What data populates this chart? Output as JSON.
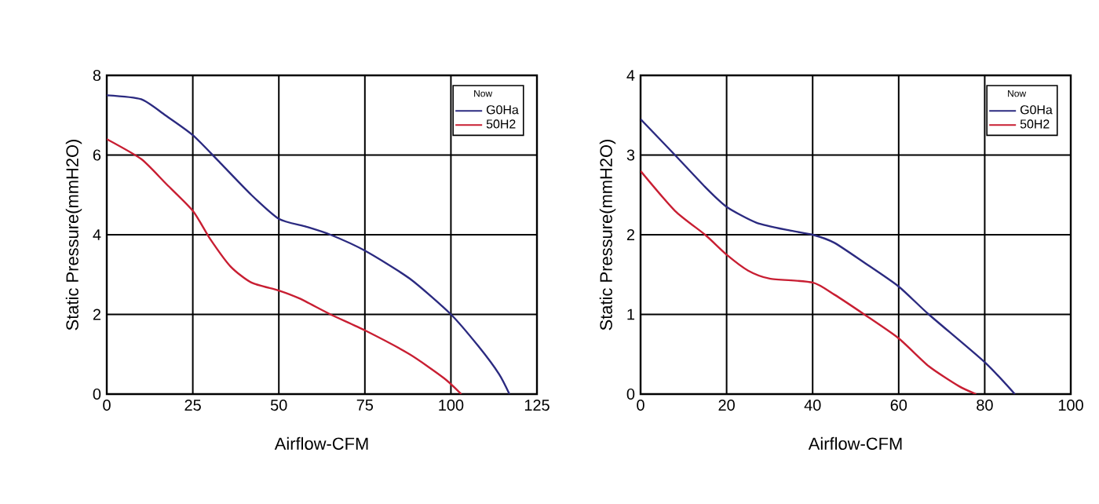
{
  "chart_data": [
    {
      "type": "line",
      "xlabel": "Airflow-CFM",
      "ylabel": "Static Pressure(mmH2O)",
      "legend_title": "Now",
      "xlim": [
        0,
        125
      ],
      "ylim": [
        0,
        8
      ],
      "xticks": [
        0,
        25,
        50,
        75,
        100,
        125
      ],
      "yticks": [
        0,
        2,
        4,
        6,
        8
      ],
      "grid": true,
      "legend": "top right",
      "marker": "none",
      "line_style": "solid",
      "series": [
        {
          "name": "G0Ha",
          "color": "#2b2a80",
          "x": [
            0,
            10,
            17,
            25,
            33,
            42,
            50,
            58,
            65,
            75,
            88,
            100,
            108,
            114,
            117
          ],
          "values": [
            7.5,
            7.4,
            7.0,
            6.5,
            5.8,
            5.0,
            4.4,
            4.2,
            4.0,
            3.6,
            2.9,
            2.0,
            1.2,
            0.5,
            0
          ]
        },
        {
          "name": "50H2",
          "color": "#c81e32",
          "x": [
            0,
            10,
            17,
            25,
            30,
            36,
            42,
            50,
            56,
            65,
            75,
            88,
            98,
            103
          ],
          "values": [
            6.4,
            5.9,
            5.3,
            4.6,
            3.9,
            3.2,
            2.8,
            2.6,
            2.4,
            2.0,
            1.6,
            1.0,
            0.4,
            0
          ]
        }
      ]
    },
    {
      "type": "line",
      "xlabel": "Airflow-CFM",
      "ylabel": "Static Pressure(mmH2O)",
      "legend_title": "Now",
      "xlim": [
        0,
        100
      ],
      "ylim": [
        0,
        4
      ],
      "xticks": [
        0,
        20,
        40,
        60,
        80,
        100
      ],
      "yticks": [
        0,
        1,
        2,
        3,
        4
      ],
      "grid": true,
      "legend": "top right",
      "marker": "none",
      "line_style": "solid",
      "series": [
        {
          "name": "G0Ha",
          "color": "#2b2a80",
          "x": [
            0,
            8,
            15,
            20,
            27,
            35,
            40,
            45,
            52,
            60,
            67,
            80,
            87
          ],
          "values": [
            3.45,
            3.0,
            2.6,
            2.35,
            2.15,
            2.05,
            2.0,
            1.9,
            1.65,
            1.35,
            1.0,
            0.4,
            0
          ]
        },
        {
          "name": "50H2",
          "color": "#c81e32",
          "x": [
            0,
            8,
            15,
            20,
            25,
            30,
            40,
            45,
            52,
            60,
            67,
            74,
            78
          ],
          "values": [
            2.8,
            2.3,
            2.0,
            1.75,
            1.55,
            1.45,
            1.4,
            1.25,
            1.0,
            0.7,
            0.35,
            0.1,
            0
          ]
        }
      ]
    }
  ]
}
